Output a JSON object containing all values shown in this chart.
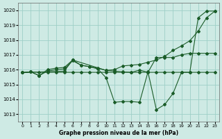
{
  "title": "Graphe pression niveau de la mer (hPa)",
  "bg_color": "#ceeae4",
  "grid_color": "#9ecfc7",
  "line_color": "#1a5c28",
  "xlim": [
    -0.5,
    23.5
  ],
  "ylim": [
    1012.5,
    1020.5
  ],
  "yticks": [
    1013,
    1014,
    1015,
    1016,
    1017,
    1018,
    1019,
    1020
  ],
  "xticks": [
    0,
    1,
    2,
    3,
    4,
    5,
    6,
    7,
    8,
    9,
    10,
    11,
    12,
    13,
    14,
    15,
    16,
    17,
    18,
    19,
    20,
    21,
    22,
    23
  ],
  "line_flat_x": [
    0,
    1,
    2,
    3,
    4,
    5,
    6,
    7,
    8,
    9,
    10,
    11,
    12,
    13,
    14,
    15,
    16,
    17,
    18,
    19,
    20,
    21,
    22,
    23
  ],
  "line_flat_y": [
    1015.8,
    1015.85,
    1015.82,
    1015.82,
    1015.82,
    1015.82,
    1015.82,
    1015.82,
    1015.82,
    1015.82,
    1015.82,
    1015.82,
    1015.82,
    1015.82,
    1015.82,
    1015.82,
    1015.82,
    1015.82,
    1015.82,
    1015.82,
    1015.82,
    1015.82,
    1015.82,
    1015.82
  ],
  "line_mid_x": [
    0,
    1,
    2,
    3,
    4,
    5,
    6,
    7,
    8,
    9,
    10,
    11,
    12,
    13,
    14,
    15,
    16,
    17,
    18,
    19,
    20,
    21,
    22,
    23
  ],
  "line_mid_y": [
    1015.8,
    1015.85,
    1015.6,
    1016.0,
    1016.1,
    1016.15,
    1016.65,
    1016.3,
    1016.2,
    1016.1,
    1015.95,
    1015.9,
    1015.85,
    1015.82,
    1015.97,
    1015.82,
    1016.82,
    1016.82,
    1016.82,
    1017.0,
    1017.1,
    1017.1,
    1017.1,
    1017.1
  ],
  "line_zigzag_x": [
    0,
    1,
    2,
    3,
    4,
    5,
    6,
    7,
    8,
    9,
    10,
    11,
    12,
    13,
    14,
    15,
    16,
    17,
    18,
    19,
    20,
    21,
    22,
    23
  ],
  "line_zigzag_y": [
    1015.8,
    1015.85,
    1015.6,
    1015.9,
    1016.0,
    1016.05,
    1016.6,
    1016.3,
    1016.2,
    1016.05,
    1015.45,
    1013.8,
    1013.85,
    1013.85,
    1013.8,
    1015.85,
    1013.3,
    1013.65,
    1014.4,
    1015.82,
    1015.82,
    1019.5,
    1019.95,
    1019.95
  ],
  "line_rising_x": [
    0,
    5,
    6,
    10,
    11,
    12,
    13,
    14,
    15,
    16,
    17,
    18,
    19,
    20,
    21,
    22,
    23
  ],
  "line_rising_y": [
    1015.8,
    1015.9,
    1016.65,
    1015.95,
    1016.0,
    1016.25,
    1016.3,
    1016.35,
    1016.5,
    1016.65,
    1016.9,
    1017.3,
    1017.6,
    1017.95,
    1018.6,
    1019.5,
    1019.95
  ]
}
